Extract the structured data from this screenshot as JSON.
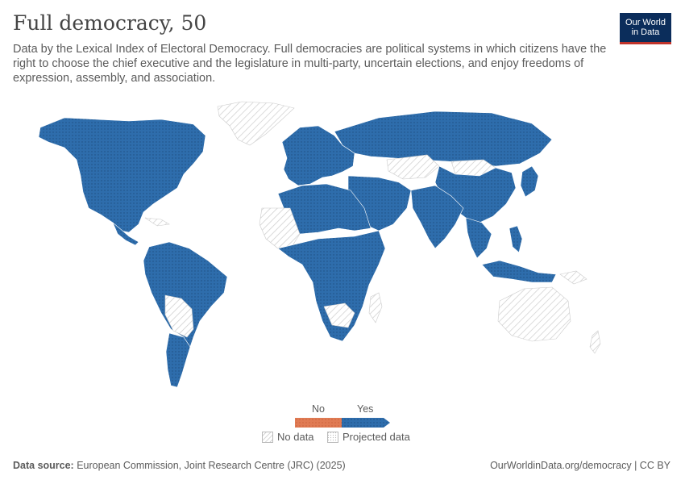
{
  "header": {
    "title": "Full democracy, 50",
    "subtitle": "Data by the Lexical Index of Electoral Democracy. Full democracies are political systems in which citizens have the right to choose the chief executive and the legislature in multi-party, uncertain elections, and enjoy freedoms of expression, assembly, and association."
  },
  "logo": {
    "line1": "Our World",
    "line2": "in Data"
  },
  "legend": {
    "categories": [
      {
        "label": "No",
        "color": "#e07b54"
      },
      {
        "label": "Yes",
        "color": "#2e6dac"
      }
    ],
    "no_data_label": "No data",
    "projected_label": "Projected data"
  },
  "footer": {
    "source_label": "Data source:",
    "source_text": "European Commission, Joint Research Centre (JRC) (2025)",
    "right_text": "OurWorldinData.org/democracy | CC BY"
  },
  "colors": {
    "yes": "#2e6dac",
    "no": "#e07b54",
    "no_data": "#d9d9d9",
    "border": "#ffffff"
  }
}
